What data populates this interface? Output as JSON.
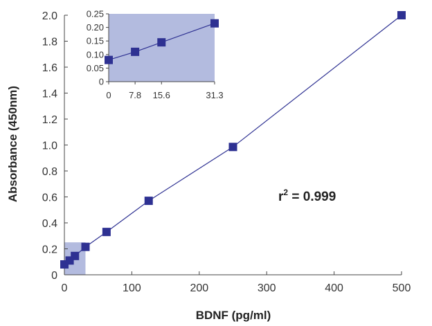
{
  "chart_data": [
    {
      "type": "scatter",
      "xlabel": "BDNF (pg/ml)",
      "ylabel": "Absorbance (450nm)",
      "xlim": [
        0,
        500
      ],
      "ylim": [
        0,
        2.0
      ],
      "xticks": [
        0,
        100,
        200,
        300,
        400,
        500
      ],
      "xtick_labels": [
        "0",
        "100",
        "200",
        "300",
        "400",
        "500"
      ],
      "yticks": [
        0,
        0.2,
        0.4,
        0.6,
        0.8,
        1.0,
        1.2,
        1.4,
        1.6,
        1.8,
        2.0
      ],
      "ytick_labels": [
        "0",
        "0.2",
        "0.4",
        "0.6",
        "0.8",
        "1.0",
        "1.2",
        "1.4",
        "1.6",
        "1.8",
        "2.0"
      ],
      "series": [
        {
          "x": [
            0,
            7.8,
            15.6,
            31.3,
            62.5,
            125,
            250,
            500
          ],
          "y": [
            0.08,
            0.11,
            0.145,
            0.215,
            0.33,
            0.57,
            0.985,
            2.0
          ]
        }
      ],
      "highlight_region": {
        "x": [
          0,
          31.3
        ],
        "y": [
          0,
          0.25
        ]
      },
      "annotation": {
        "prefix": "r",
        "superscript": "2",
        "suffix": " = 0.999"
      },
      "grid": false
    },
    {
      "type": "scatter",
      "xlim": [
        0,
        31.3
      ],
      "ylim": [
        0,
        0.25
      ],
      "xticks": [
        0,
        7.8,
        15.6,
        31.3
      ],
      "xtick_labels": [
        "0",
        "7.8",
        "15.6",
        "31.3"
      ],
      "yticks": [
        0,
        0.05,
        0.1,
        0.15,
        0.2,
        0.25
      ],
      "ytick_labels": [
        "0",
        "0.05",
        "0.10",
        "0.15",
        "0.20",
        "0.25"
      ],
      "series": [
        {
          "x": [
            0,
            7.8,
            15.6,
            31.3
          ],
          "y": [
            0.08,
            0.11,
            0.145,
            0.215
          ]
        }
      ],
      "grid": false
    }
  ],
  "colors": {
    "marker": "#2e3192",
    "line": "#2e3192",
    "highlight": "#b3bbdf",
    "axis": "#444444"
  }
}
